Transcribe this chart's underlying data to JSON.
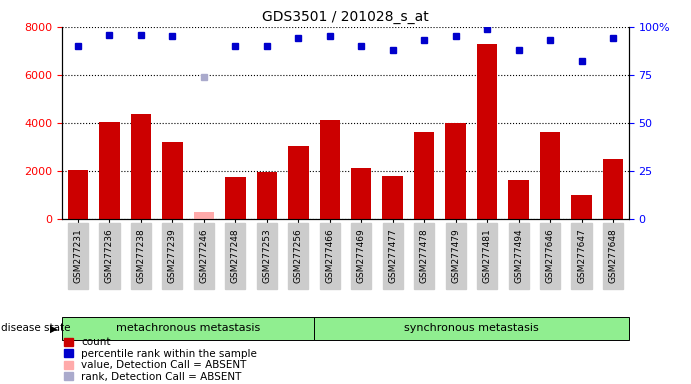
{
  "title": "GDS3501 / 201028_s_at",
  "samples": [
    "GSM277231",
    "GSM277236",
    "GSM277238",
    "GSM277239",
    "GSM277246",
    "GSM277248",
    "GSM277253",
    "GSM277256",
    "GSM277466",
    "GSM277469",
    "GSM277477",
    "GSM277478",
    "GSM277479",
    "GSM277481",
    "GSM277494",
    "GSM277646",
    "GSM277647",
    "GSM277648"
  ],
  "count_values": [
    2050,
    4050,
    4350,
    3200,
    300,
    1750,
    1950,
    3050,
    4100,
    2100,
    1800,
    3600,
    4000,
    7300,
    1600,
    3600,
    1000,
    2500
  ],
  "absent_count": [
    null,
    null,
    null,
    null,
    300,
    null,
    null,
    null,
    null,
    null,
    null,
    null,
    null,
    null,
    null,
    null,
    null,
    null
  ],
  "percentile_values": [
    90,
    96,
    96,
    95,
    null,
    90,
    90,
    94,
    95,
    90,
    88,
    93,
    95,
    99,
    88,
    93,
    82,
    94
  ],
  "absent_percentile": [
    null,
    null,
    null,
    null,
    74,
    null,
    null,
    null,
    null,
    null,
    null,
    null,
    null,
    null,
    null,
    null,
    null,
    null
  ],
  "group1_label": "metachronous metastasis",
  "group2_label": "synchronous metastasis",
  "group1_count": 8,
  "group2_count": 10,
  "ylim_left": [
    0,
    8000
  ],
  "ylim_right": [
    0,
    100
  ],
  "yticks_left": [
    0,
    2000,
    4000,
    6000,
    8000
  ],
  "yticks_right": [
    0,
    25,
    50,
    75,
    100
  ],
  "bar_color": "#cc0000",
  "absent_bar_color": "#ffaaaa",
  "dot_color": "#0000cc",
  "absent_dot_color": "#aaaacc",
  "group_bg_color": "#90ee90",
  "xlabel_bg_color": "#cccccc",
  "legend_items": [
    {
      "color": "#cc0000",
      "label": "count"
    },
    {
      "color": "#0000cc",
      "label": "percentile rank within the sample"
    },
    {
      "color": "#ffaaaa",
      "label": "value, Detection Call = ABSENT"
    },
    {
      "color": "#aaaacc",
      "label": "rank, Detection Call = ABSENT"
    }
  ]
}
